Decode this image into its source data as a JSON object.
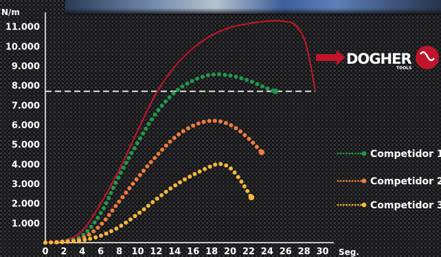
{
  "chart_data": {
    "type": "line",
    "ylabel": "N/m",
    "xlabel": "Seg.",
    "x_ticks": [
      0,
      2,
      4,
      6,
      8,
      10,
      12,
      14,
      16,
      18,
      20,
      22,
      24,
      26,
      28,
      30
    ],
    "y_ticks": [
      1000,
      2000,
      3000,
      4000,
      5000,
      6000,
      7000,
      8000,
      9000,
      10000,
      11000
    ],
    "y_tick_labels": [
      "1.000",
      "2.000",
      "3.000",
      "4.000",
      "5.000",
      "6.000",
      "7.000",
      "8.000",
      "9.000",
      "10.000",
      "11.000"
    ],
    "xlim": [
      0,
      31
    ],
    "ylim": [
      0,
      12000
    ],
    "reference_line": {
      "y": 7700,
      "x_end": 29.2,
      "style": "dashed",
      "color": "#e6e6e6"
    },
    "series": [
      {
        "name": "DOGHER",
        "color": "#c0152a",
        "style": "solid",
        "x": [
          0,
          2,
          4,
          6,
          8,
          10,
          12,
          14,
          16,
          18,
          20,
          22,
          24,
          25,
          26,
          27,
          28,
          28.6,
          29,
          29.2
        ],
        "y": [
          0,
          100,
          600,
          2000,
          3700,
          5700,
          7600,
          8950,
          9900,
          10550,
          10950,
          11150,
          11270,
          11300,
          11250,
          11100,
          10400,
          9300,
          8300,
          7750
        ]
      },
      {
        "name": "Competidor 1",
        "color": "#1f9a4d",
        "style": "dotted",
        "x": [
          0,
          2,
          4,
          6,
          8,
          10,
          12,
          14,
          16,
          18,
          20,
          22,
          24,
          24.9
        ],
        "y": [
          0,
          80,
          350,
          1500,
          3400,
          5100,
          6600,
          7650,
          8250,
          8550,
          8500,
          8250,
          7850,
          7700
        ]
      },
      {
        "name": "Competidor 2",
        "color": "#ef7d3c",
        "style": "dotted",
        "x": [
          0,
          2,
          4,
          6,
          8,
          10,
          12,
          14,
          16,
          18,
          20,
          22,
          23.4
        ],
        "y": [
          0,
          50,
          220,
          900,
          2100,
          3300,
          4400,
          5350,
          5950,
          6200,
          6000,
          5300,
          4600
        ]
      },
      {
        "name": "Competidor 3",
        "color": "#f4b93a",
        "style": "dotted",
        "x": [
          0,
          2,
          4,
          6,
          8,
          10,
          12,
          14,
          16,
          18,
          19,
          20,
          21,
          22.3
        ],
        "y": [
          0,
          30,
          120,
          350,
          800,
          1450,
          2200,
          2900,
          3450,
          3900,
          4000,
          3800,
          3250,
          2300
        ]
      }
    ],
    "legend": {
      "placement": "right",
      "entries": [
        "Competidor 1",
        "Competidor 2",
        "Competidor 3"
      ]
    }
  },
  "logo": {
    "text": "DOGHER",
    "subtext": "TOOLS",
    "arrow_color": "#c0152a",
    "badge_color": "#c0152a"
  }
}
